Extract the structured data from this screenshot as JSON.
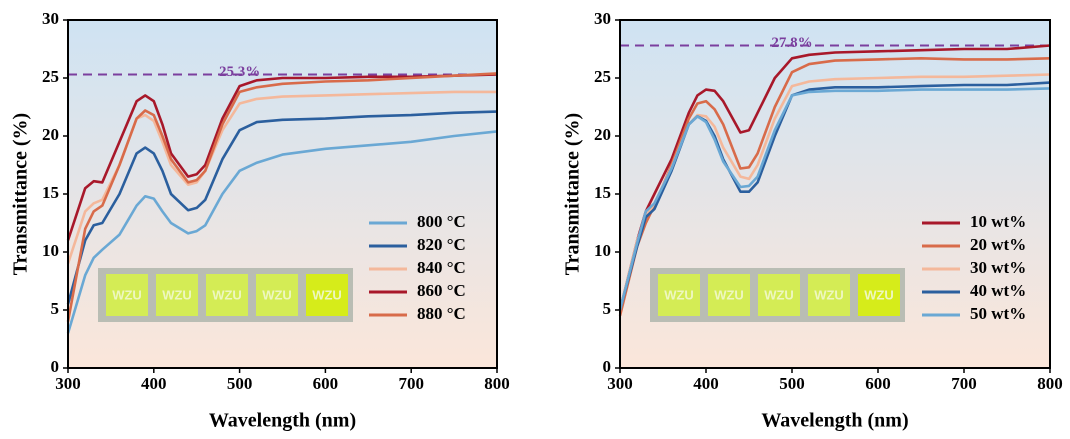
{
  "chart_data": [
    {
      "type": "line",
      "x_label": "Wavelength (nm)",
      "y_label": "Transmittance (%)",
      "x": [
        300,
        320,
        330,
        340,
        360,
        380,
        390,
        400,
        410,
        420,
        440,
        450,
        460,
        480,
        500,
        520,
        550,
        600,
        650,
        700,
        750,
        800
      ],
      "xlim": [
        300,
        800
      ],
      "xticks": [
        300,
        400,
        500,
        600,
        700,
        800
      ],
      "ylim": [
        0,
        30
      ],
      "yticks": [
        0,
        5,
        10,
        15,
        20,
        25,
        30
      ],
      "legend": "lower right",
      "reference_line": {
        "value": 25.3,
        "label": "25.3%",
        "color": "#7b3f9e"
      },
      "inset_label": "WZU",
      "series": [
        {
          "name": "800 °C",
          "color": "#6aa8d4",
          "values": [
            3,
            8,
            9.5,
            10.2,
            11.5,
            14,
            14.8,
            14.6,
            13.5,
            12.5,
            11.6,
            11.8,
            12.3,
            15,
            17,
            17.7,
            18.4,
            18.9,
            19.2,
            19.5,
            20,
            20.4
          ]
        },
        {
          "name": "820 °C",
          "color": "#2b5f9e",
          "values": [
            5.5,
            11,
            12.3,
            12.5,
            15,
            18.5,
            19,
            18.5,
            17,
            15,
            13.6,
            13.8,
            14.5,
            18,
            20.5,
            21.2,
            21.4,
            21.5,
            21.7,
            21.8,
            22,
            22.1
          ]
        },
        {
          "name": "840 °C",
          "color": "#f4b89b",
          "values": [
            9,
            13.5,
            14.2,
            14.5,
            17.5,
            21.5,
            21.8,
            21.3,
            19.5,
            17.5,
            15.8,
            16,
            17,
            20.5,
            22.8,
            23.2,
            23.4,
            23.5,
            23.6,
            23.7,
            23.8,
            23.8
          ]
        },
        {
          "name": "860 °C",
          "color": "#a8182a",
          "values": [
            11,
            15.5,
            16.1,
            16,
            19.5,
            23,
            23.5,
            23,
            21,
            18.5,
            16.5,
            16.7,
            17.5,
            21.5,
            24.3,
            24.8,
            25,
            25,
            25.1,
            25.1,
            25.2,
            25.3
          ]
        },
        {
          "name": "880 °C",
          "color": "#d86b4a",
          "values": [
            4,
            12,
            13.5,
            14,
            17.5,
            21.5,
            22.2,
            21.8,
            20,
            18,
            16,
            16.2,
            17,
            21,
            23.8,
            24.2,
            24.5,
            24.7,
            24.8,
            25,
            25.2,
            25.4
          ]
        }
      ]
    },
    {
      "type": "line",
      "x_label": "Wavelength (nm)",
      "y_label": "Transmittance (%)",
      "x": [
        300,
        320,
        330,
        340,
        360,
        380,
        390,
        400,
        410,
        420,
        440,
        450,
        460,
        480,
        500,
        520,
        550,
        600,
        650,
        700,
        750,
        800
      ],
      "xlim": [
        300,
        800
      ],
      "xticks": [
        300,
        400,
        500,
        600,
        700,
        800
      ],
      "ylim": [
        0,
        30
      ],
      "yticks": [
        0,
        5,
        10,
        15,
        20,
        25,
        30
      ],
      "legend": "lower right",
      "reference_line": {
        "value": 27.8,
        "label": "27.8%",
        "color": "#7b3f9e"
      },
      "inset_label": "WZU",
      "series": [
        {
          "name": "10 wt%",
          "color": "#a8182a",
          "values": [
            5,
            11,
            13.5,
            15,
            18,
            22,
            23.5,
            24,
            23.9,
            23,
            20.3,
            20.5,
            22,
            25,
            26.7,
            27,
            27.2,
            27.3,
            27.4,
            27.5,
            27.5,
            27.8
          ]
        },
        {
          "name": "20 wt%",
          "color": "#d86b4a",
          "values": [
            4.5,
            10.5,
            12.5,
            14,
            17.5,
            21.5,
            22.8,
            23,
            22.3,
            21,
            17.2,
            17.3,
            18.5,
            22.5,
            25.5,
            26.2,
            26.5,
            26.6,
            26.7,
            26.6,
            26.6,
            26.7
          ]
        },
        {
          "name": "30 wt%",
          "color": "#f4b89b",
          "values": [
            5,
            11,
            13,
            14.2,
            17.3,
            21,
            21.8,
            21.7,
            20.8,
            19,
            16.5,
            16.3,
            17.5,
            21.5,
            24.3,
            24.7,
            24.9,
            25,
            25.1,
            25.1,
            25.2,
            25.3
          ]
        },
        {
          "name": "40 wt%",
          "color": "#2b5f9e",
          "values": [
            5,
            10.5,
            13,
            13.7,
            17,
            21,
            21.7,
            21.3,
            20,
            18,
            15.2,
            15.2,
            16,
            20,
            23.5,
            24,
            24.2,
            24.2,
            24.3,
            24.4,
            24.4,
            24.6
          ]
        },
        {
          "name": "50 wt%",
          "color": "#6aa8d4",
          "values": [
            5,
            10.8,
            13.5,
            14.2,
            17.2,
            21,
            21.7,
            21.2,
            19.7,
            17.8,
            15.6,
            15.7,
            16.5,
            20.5,
            23.5,
            23.8,
            23.9,
            23.9,
            24,
            24,
            24,
            24.1
          ]
        }
      ]
    }
  ]
}
